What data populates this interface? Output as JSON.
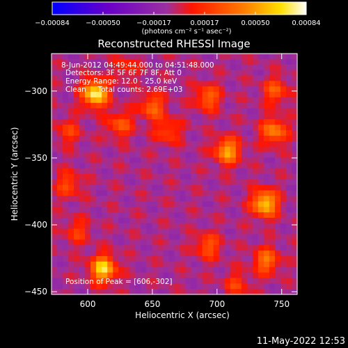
{
  "chart_data": {
    "type": "heatmap",
    "title": "Reconstructed RHESSI Image",
    "xlabel": "Heliocentric X (arcsec)",
    "ylabel": "Heliocentric Y (arcsec)",
    "xlim": [
      572,
      762
    ],
    "ylim": [
      -452,
      -272
    ],
    "x_ticks": [
      600,
      650,
      700,
      750
    ],
    "y_ticks": [
      -300,
      -350,
      -400,
      -450
    ],
    "x_tick_labels": [
      "600",
      "650",
      "700",
      "750"
    ],
    "y_tick_labels": [
      "−300",
      "−350",
      "−400",
      "−450"
    ],
    "annotations": [
      " 8-Jun-2012 04:49:44.000 to 04:51:48.000",
      "Detectors: 3F 5F 6F 7F 8F, Att 0",
      "Energy Range: 12.0 - 25.0 keV",
      "Clean     Total counts: 2.69E+03"
    ],
    "peak_label": "Position of Peak = [606,-302]",
    "peak_position": [
      606,
      -302
    ],
    "colorbar": {
      "min": -0.00084,
      "max": 0.00084,
      "tick_labels": [
        "−0.00084",
        "−0.00050",
        "−0.00017",
        "0.00017",
        "0.00050",
        "0.00084"
      ],
      "unit_text": "(photons cm⁻² s⁻¹ asec⁻²)",
      "colors": [
        "#0000ff",
        "#6a00c8",
        "#9b30a0",
        "#ff1500",
        "#ff7a00",
        "#ffe000",
        "#ffffff"
      ]
    },
    "sources": [
      {
        "x": 606,
        "y": -302,
        "value": 0.00084
      },
      {
        "x": 612,
        "y": -433,
        "value": 0.00075
      },
      {
        "x": 737,
        "y": -384,
        "value": 0.00072
      },
      {
        "x": 708,
        "y": -345,
        "value": 0.0006
      },
      {
        "x": 744,
        "y": -330,
        "value": 0.0005
      },
      {
        "x": 693,
        "y": -305,
        "value": 0.0004
      },
      {
        "x": 745,
        "y": -300,
        "value": 0.00035
      },
      {
        "x": 738,
        "y": -427,
        "value": 0.00045
      },
      {
        "x": 693,
        "y": -416,
        "value": 0.00035
      },
      {
        "x": 650,
        "y": -312,
        "value": 0.0004
      },
      {
        "x": 625,
        "y": -325,
        "value": 0.00035
      },
      {
        "x": 662,
        "y": -330,
        "value": 0.0003
      },
      {
        "x": 585,
        "y": -370,
        "value": 0.0003
      },
      {
        "x": 585,
        "y": -330,
        "value": 0.00025
      },
      {
        "x": 592,
        "y": -405,
        "value": 0.00025
      },
      {
        "x": 630,
        "y": -282,
        "value": 0.0002
      },
      {
        "x": 715,
        "y": -445,
        "value": 0.00025
      }
    ]
  },
  "footer": {
    "timestamp": "11-May-2022 12:53"
  }
}
